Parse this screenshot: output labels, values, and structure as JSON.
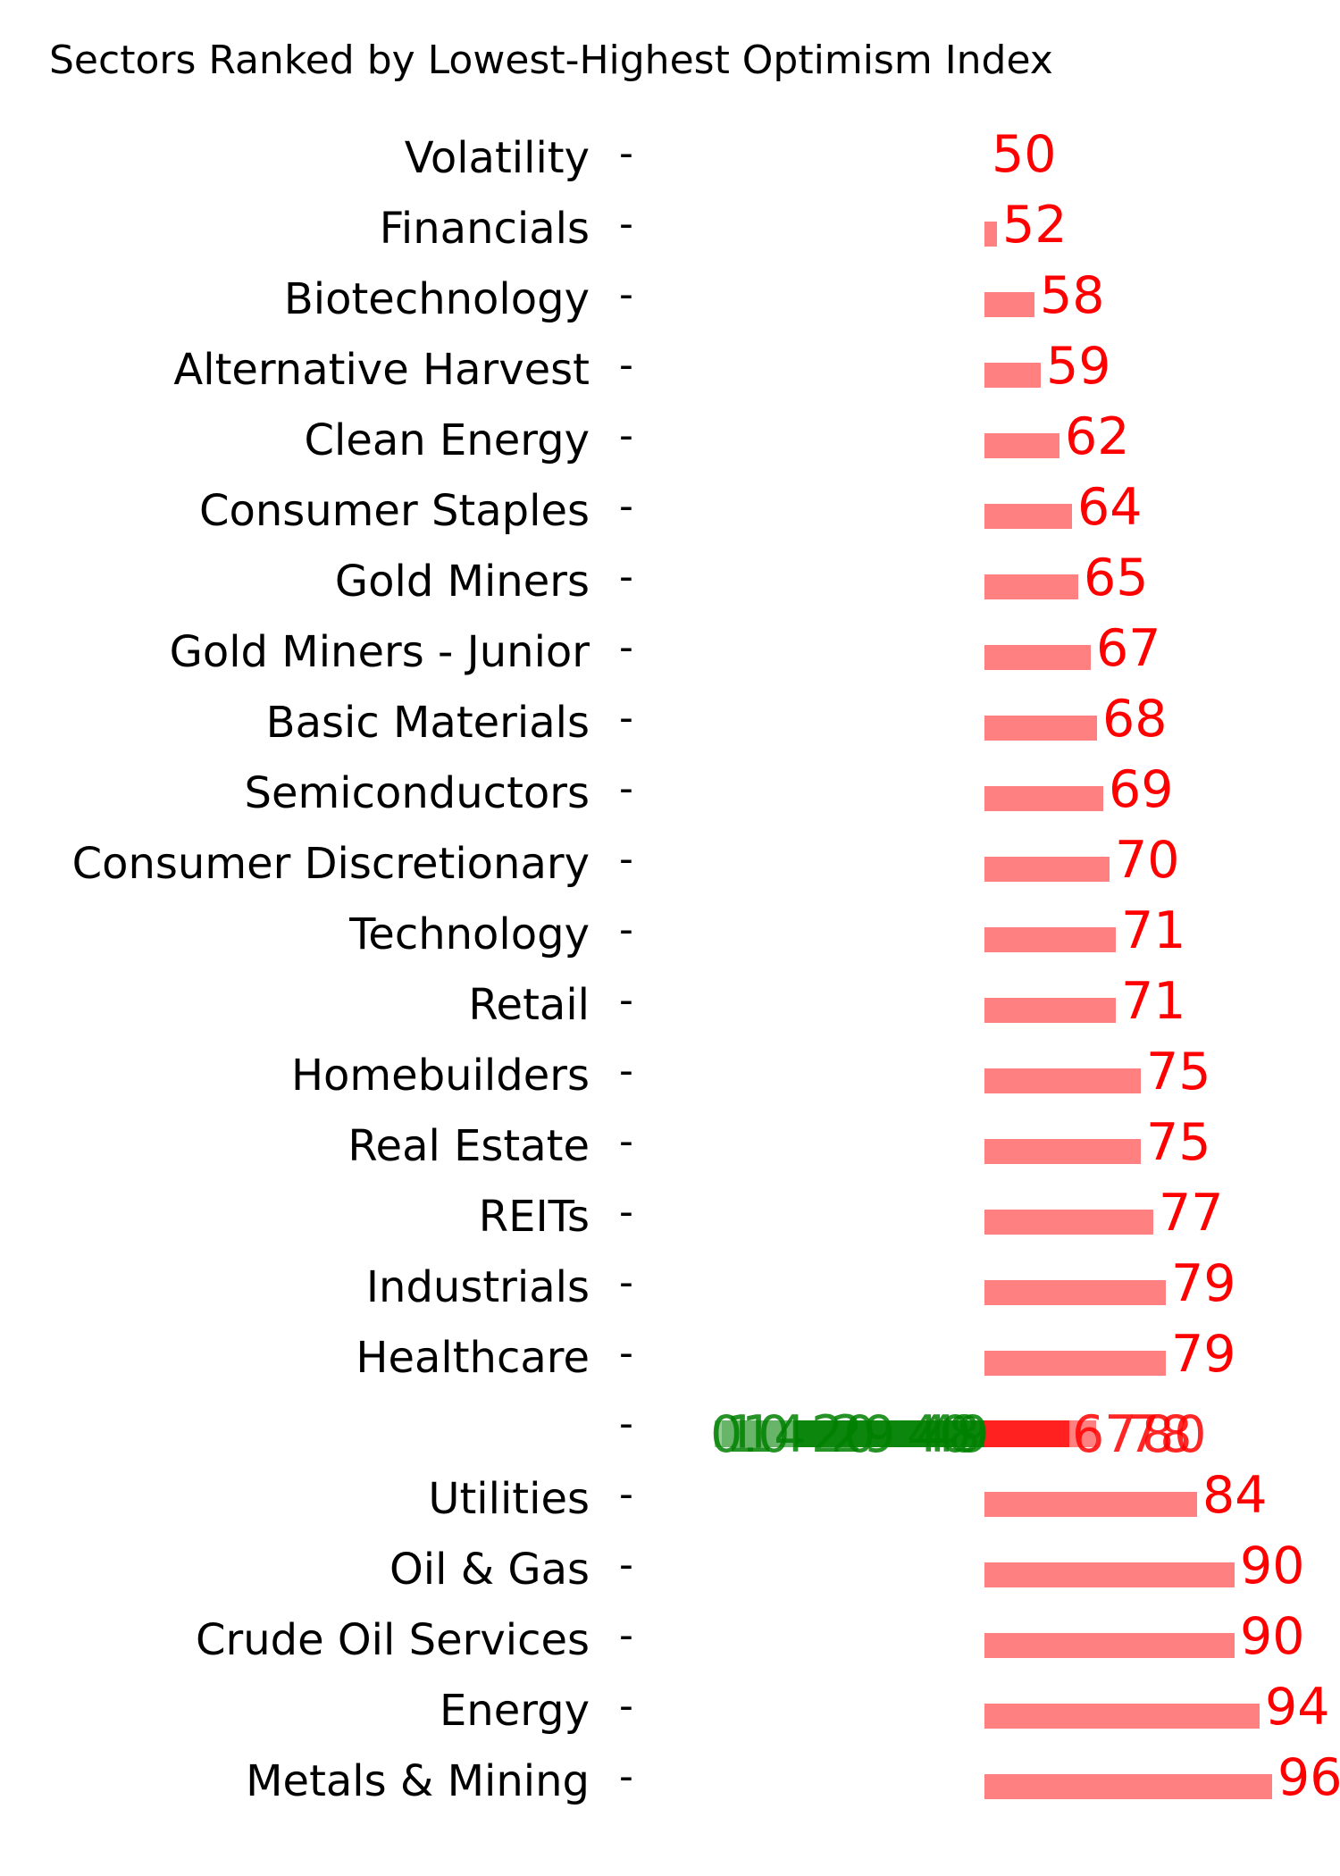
{
  "chart_data": {
    "type": "bar",
    "orientation": "horizontal",
    "title": "Sectors Ranked by Lowest-Highest Optimism Index",
    "xlabel": "",
    "ylabel": "",
    "grid": false,
    "categories": [
      "Volatility",
      "Financials",
      "Biotechnology",
      "Alternative Harvest",
      "Clean Energy",
      "Consumer Staples",
      "Gold Miners",
      "Gold Miners - Junior",
      "Basic Materials",
      "Semiconductors",
      "Consumer Discretionary",
      "Technology",
      "Retail",
      "Homebuilders",
      "Real Estate",
      "REITs",
      "Industrials",
      "Healthcare",
      "",
      "Utilities",
      "Oil & Gas",
      "Crude Oil Services",
      "Energy",
      "Metals & Mining"
    ],
    "values": [
      50,
      52,
      58,
      59,
      62,
      64,
      65,
      67,
      68,
      69,
      70,
      71,
      71,
      75,
      75,
      77,
      79,
      79,
      null,
      84,
      90,
      90,
      94,
      96
    ],
    "overlap_row": {
      "category": "",
      "green_labels": [
        "0",
        "10",
        "14",
        "20",
        "29",
        "40",
        "48",
        "49"
      ],
      "red_labels": [
        "67",
        "78",
        "80"
      ]
    },
    "colors": {
      "bar": "#ff8080",
      "label": "#ff0000",
      "overlap_green": "#008000",
      "overlap_red": "#ff2020"
    }
  }
}
